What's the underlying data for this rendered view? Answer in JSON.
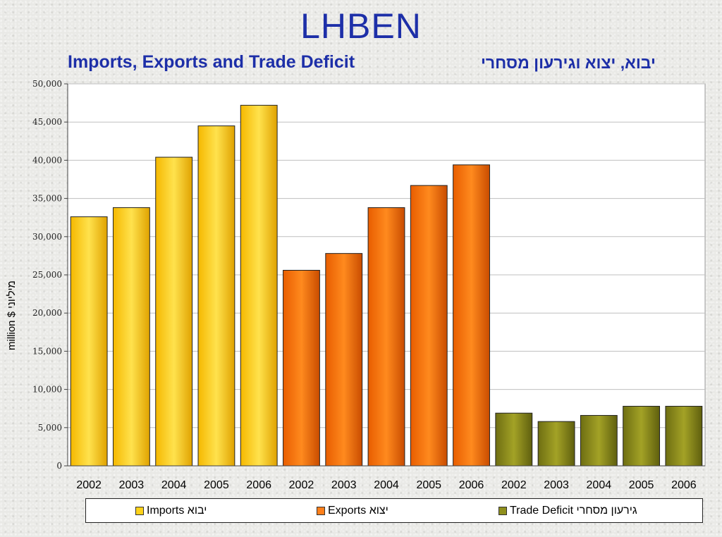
{
  "header": {
    "title": "LHBEN",
    "subtitle_en": "Imports, Exports and Trade Deficit",
    "subtitle_he": "יבוא, יצוא וגירעון מסחרי"
  },
  "chart_data": {
    "type": "bar",
    "ylabel": "million $ מיליוני",
    "ylim": [
      0,
      50000
    ],
    "yticks": [
      0,
      5000,
      10000,
      15000,
      20000,
      25000,
      30000,
      35000,
      40000,
      45000,
      50000
    ],
    "ytick_labels": [
      "0",
      "5,000",
      "10,000",
      "15,000",
      "20,000",
      "25,000",
      "30,000",
      "35,000",
      "40,000",
      "45,000",
      "50,000"
    ],
    "grid": true,
    "legend_position": "bottom",
    "series": [
      {
        "name": "Imports  יבוא",
        "color": "#ffd21a",
        "categories": [
          "2002",
          "2003",
          "2004",
          "2005",
          "2006"
        ],
        "values": [
          32600,
          33800,
          40400,
          44500,
          47200
        ]
      },
      {
        "name": "Exports   יצוא",
        "color": "#ff7f1a",
        "categories": [
          "2002",
          "2003",
          "2004",
          "2005",
          "2006"
        ],
        "values": [
          25600,
          27800,
          33800,
          36700,
          39400
        ]
      },
      {
        "name": "Trade Deficit   גירעון מסחרי",
        "color": "#8f8f1c",
        "categories": [
          "2002",
          "2003",
          "2004",
          "2005",
          "2006"
        ],
        "values": [
          6900,
          5800,
          6600,
          7800,
          7800
        ]
      }
    ]
  }
}
